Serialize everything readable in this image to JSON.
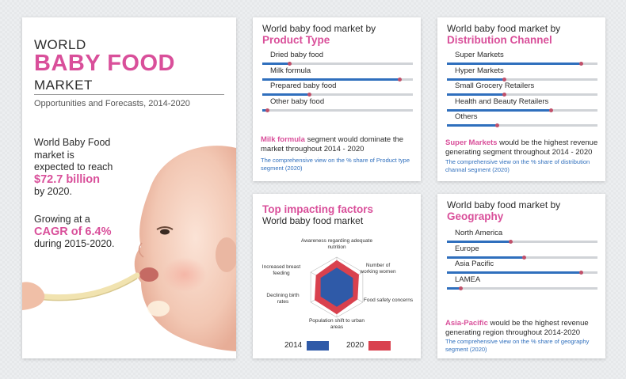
{
  "left": {
    "world": "WORLD",
    "baby_food": "BABY FOOD",
    "market": "MARKET",
    "subtitle": "Opportunities and Forecasts, 2014-2020",
    "p1_line1": "World Baby Food",
    "p1_line2": "market is",
    "p1_line3": "expected to reach",
    "p1_value": "$72.7 billion",
    "p1_line4": "by 2020.",
    "p2_line1": "Growing at a",
    "p2_value": "CAGR of 6.4%",
    "p2_line2": "during 2015-2020."
  },
  "product": {
    "title": "World baby food market by",
    "title_accent": "Product Type",
    "note_strong": "Milk formula",
    "note_rest": " segment would dominate the market throughout 2014 - 2020",
    "note_small": "The comprehensive view on the % share of Product type segment (2020)"
  },
  "distribution": {
    "title": "World baby food market by",
    "title_accent": "Distribution Channel",
    "note_strong": "Super Markets",
    "note_rest": " would be the highest revenue generating segment throughout 2014 - 2020",
    "note_small": "The comprehensive view on the % share of distribution channal segment (2020)"
  },
  "factors": {
    "title_accent": "Top impacting factors",
    "title": "World baby food market",
    "axes": [
      "Awareness regarding adequate nutrition",
      "Number of working women",
      "Food safety concerns",
      "Population shift to urban areas",
      "Declining birth rates",
      "Increased breast feeding"
    ],
    "legend_2014": "2014",
    "legend_2020": "2020"
  },
  "geography": {
    "title": "World baby food market by",
    "title_accent": "Geography",
    "note_strong": "Asia-Pacific",
    "note_rest": " would be the highest revenue generating region throughout 2014-2020",
    "note_small": "The comprehensive view on the % share of geography segment (2020)"
  },
  "colors": {
    "accent": "#d94f9a",
    "bar": "#2f6fbd",
    "dot": "#c0506a",
    "series_2014": "#2f5aa8",
    "series_2020": "#d9414e"
  },
  "chart_data": [
    {
      "type": "bar",
      "title": "World baby food market by Product Type",
      "categories": [
        "Dried baby food",
        "Milk formula",
        "Prepared baby food",
        "Other baby food"
      ],
      "values": [
        18,
        91,
        31,
        3
      ]
    },
    {
      "type": "bar",
      "title": "World baby food market by Distribution Channel",
      "categories": [
        "Super Markets",
        "Hyper Markets",
        "Small Grocery Retailers",
        "Health and Beauty Retailers",
        "Others"
      ],
      "values": [
        89,
        38,
        38,
        69,
        33
      ]
    },
    {
      "type": "radar",
      "title": "Top impacting factors World baby food market",
      "categories": [
        "Awareness regarding adequate nutrition",
        "Number of working women",
        "Food safety concerns",
        "Population shift to urban areas",
        "Declining birth rates",
        "Increased breast feeding"
      ],
      "series": [
        {
          "name": "2014",
          "values": [
            0.65,
            0.62,
            0.62,
            0.65,
            0.62,
            0.62
          ]
        },
        {
          "name": "2020",
          "values": [
            0.9,
            0.85,
            0.8,
            0.9,
            0.85,
            0.8
          ]
        }
      ]
    },
    {
      "type": "bar",
      "title": "World baby food market by Geography",
      "categories": [
        "North America",
        "Europe",
        "Asia Pacific",
        "LAMEA"
      ],
      "values": [
        42,
        51,
        89,
        9
      ]
    }
  ]
}
